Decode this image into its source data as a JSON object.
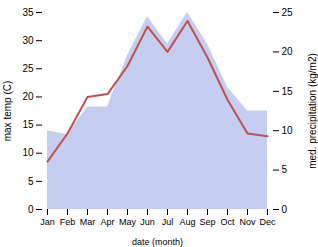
{
  "chart_data": {
    "type": "line",
    "categories": [
      "Jan",
      "Feb",
      "Mar",
      "Apr",
      "May",
      "Jun",
      "Jul",
      "Aug",
      "Sep",
      "Oct",
      "Nov",
      "Dec"
    ],
    "series": [
      {
        "type": "area",
        "axis": "y2",
        "color": "#c5cef0",
        "values": [
          10.0,
          9.5,
          13.0,
          13.0,
          19.5,
          24.5,
          21.0,
          25.0,
          21.0,
          15.5,
          12.5,
          12.5
        ]
      },
      {
        "type": "line",
        "color": "#c0504d",
        "values": [
          8.5,
          13.5,
          20.0,
          20.5,
          25.5,
          32.5,
          28.0,
          33.5,
          27.0,
          19.5,
          13.5,
          13.0
        ]
      }
    ],
    "xlabel": "date (month)",
    "ylabel": "max temp (C)",
    "y2label": "med. precipitation (kg/m2)",
    "ylim": [
      0,
      35
    ],
    "yticks": [
      0,
      5,
      10,
      15,
      20,
      25,
      30,
      35
    ],
    "y2lim": [
      0,
      25
    ],
    "y2ticks": [
      0,
      5,
      10,
      15,
      20,
      25
    ]
  }
}
